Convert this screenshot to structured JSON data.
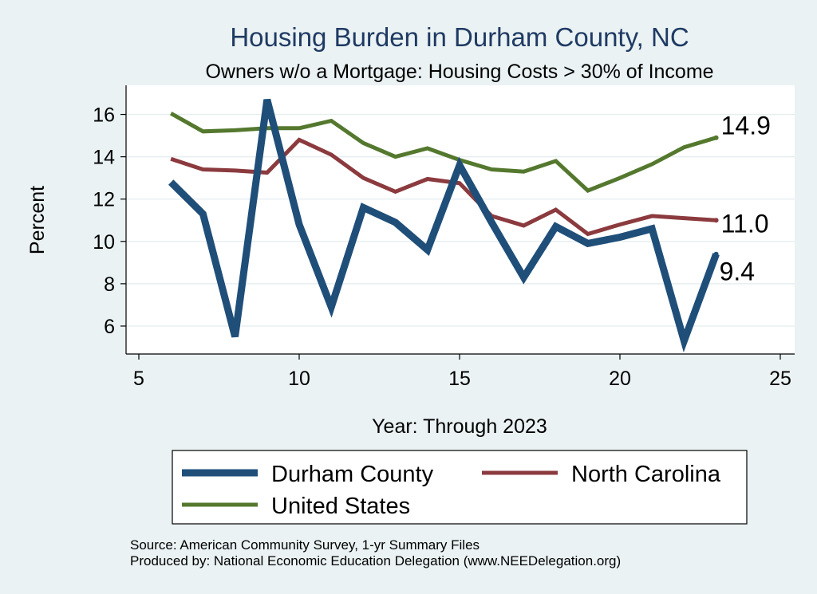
{
  "chart_data": {
    "type": "line",
    "title": "Housing Burden in Durham County, NC",
    "subtitle": "Owners w/o a Mortgage: Housing Costs > 30% of Income",
    "xlabel": "Year: Through 2023",
    "ylabel": "Percent",
    "xlim": [
      5,
      25
    ],
    "ylim": [
      5,
      17
    ],
    "xticks": [
      5,
      10,
      15,
      20,
      25
    ],
    "yticks": [
      6,
      8,
      10,
      12,
      14,
      16
    ],
    "grid": true,
    "legend_position": "bottom",
    "x": [
      6,
      7,
      8,
      9,
      10,
      11,
      12,
      13,
      14,
      15,
      16,
      17,
      18,
      19,
      20,
      21,
      22,
      23
    ],
    "series": [
      {
        "name": "Durham County",
        "color": "#1f4e79",
        "values": [
          12.8,
          11.3,
          5.5,
          16.7,
          10.8,
          6.9,
          11.6,
          10.9,
          9.6,
          13.6,
          10.9,
          8.3,
          10.7,
          9.9,
          10.2,
          10.6,
          5.3,
          9.4
        ],
        "end_label": "9.4"
      },
      {
        "name": "North Carolina",
        "color": "#8b3a3e",
        "values": [
          13.9,
          13.4,
          13.35,
          13.25,
          14.8,
          14.1,
          13.0,
          12.35,
          12.95,
          12.75,
          11.2,
          10.75,
          11.5,
          10.35,
          10.8,
          11.2,
          11.1,
          11.0
        ],
        "end_label": "11.0"
      },
      {
        "name": "United States",
        "color": "#54782e",
        "values": [
          16.05,
          15.2,
          15.25,
          15.35,
          15.35,
          15.7,
          14.65,
          14.0,
          14.4,
          13.85,
          13.4,
          13.3,
          13.8,
          12.4,
          13.0,
          13.65,
          14.45,
          14.9
        ],
        "end_label": "14.9"
      }
    ],
    "source": "Source: American Community Survey, 1-yr Summary Files",
    "produced_by": "Produced by: National Economic Education Delegation (www.NEEDelegation.org)"
  }
}
